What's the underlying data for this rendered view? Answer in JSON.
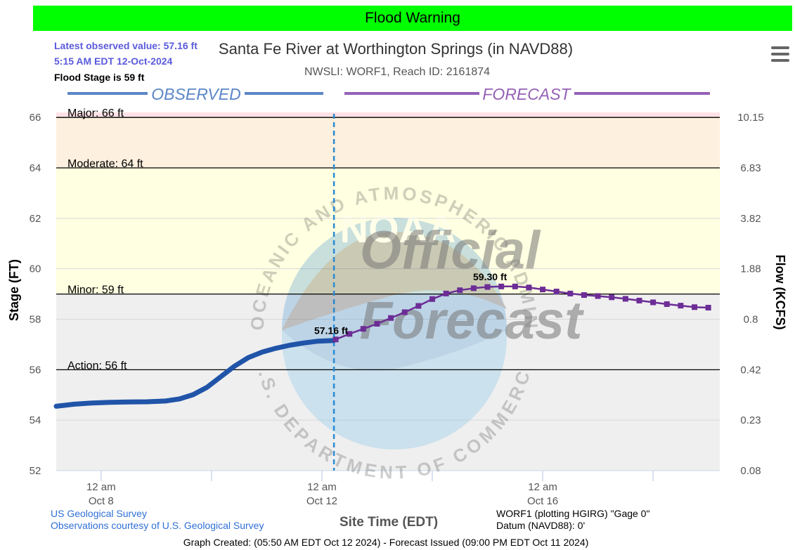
{
  "banner": "Flood Warning",
  "latest": {
    "line1": "Latest observed value: 57.16 ft",
    "line2": "5:15 AM EDT 12-Oct-2024",
    "line3": "Flood Stage is 59 ft"
  },
  "chart_data": {
    "type": "line",
    "title": "Santa Fe River at Worthington Springs (in NAVD88)",
    "subtitle": "NWSLI: WORF1, Reach ID: 2161874",
    "ylabel": "Stage (FT)",
    "y2label": "Flow (KCFS)",
    "xlabel": "Site Time (EDT)",
    "ylim": [
      52,
      66.2
    ],
    "y_ticks": [
      52,
      54,
      56,
      58,
      60,
      62,
      64,
      66
    ],
    "y2_tick_labels": [
      "0.08",
      "0.23",
      "0.42",
      "0.8",
      "1.88",
      "3.82",
      "6.83",
      "10.15"
    ],
    "x_ticks": [
      {
        "hour": 0,
        "line1": "12 am",
        "line2": "Oct 8"
      },
      {
        "hour": 96,
        "line1": "12 am",
        "line2": "Oct 12"
      },
      {
        "hour": 192,
        "line1": "12 am",
        "line2": "Oct 16"
      }
    ],
    "x_minor_ticks": [
      48,
      144,
      240
    ],
    "xlim": [
      -19.5,
      269
    ],
    "grid": true,
    "segment_labels": {
      "observed": "OBSERVED",
      "forecast": "FORECAST"
    },
    "current_time_hour": 5.25,
    "flood_categories": [
      {
        "label": "Major: 66 ft",
        "stage": 66,
        "color": "#ffe2e6"
      },
      {
        "label": "Moderate: 64 ft",
        "stage": 64,
        "color": "#fdf0de"
      },
      {
        "label": "Minor: 59 ft",
        "stage": 59,
        "color": "#ffffe1"
      },
      {
        "label": "Action: 56 ft",
        "stage": 56,
        "color": "#efefef"
      }
    ],
    "series": [
      {
        "name": "Observed",
        "color": "#2054a8",
        "x": [
          -19.5,
          -12,
          -4,
          4,
          12,
          20,
          28,
          34,
          40,
          46,
          52,
          58,
          64,
          70,
          76,
          82,
          88,
          94,
          101.25
        ],
        "y": [
          54.55,
          54.63,
          54.68,
          54.71,
          54.72,
          54.73,
          54.76,
          54.84,
          55.01,
          55.3,
          55.72,
          56.14,
          56.48,
          56.7,
          56.85,
          56.97,
          57.06,
          57.13,
          57.16
        ]
      },
      {
        "name": "Forecast",
        "color": "#6c2d96",
        "x": [
          102,
          108,
          114,
          120,
          126,
          132,
          138,
          144,
          150,
          156,
          162,
          168,
          174,
          180,
          186,
          192,
          198,
          204,
          210,
          216,
          222,
          228,
          234,
          240,
          246,
          252,
          258,
          264
        ],
        "y": [
          57.2,
          57.42,
          57.62,
          57.82,
          58.05,
          58.28,
          58.53,
          58.8,
          59.02,
          59.15,
          59.23,
          59.28,
          59.3,
          59.3,
          59.26,
          59.18,
          59.1,
          59.02,
          58.96,
          58.92,
          58.87,
          58.81,
          58.74,
          58.67,
          58.6,
          58.54,
          58.48,
          58.46
        ]
      }
    ],
    "annotations": [
      {
        "text": "57.16 ft",
        "x": 101.25,
        "y": 57.16
      },
      {
        "text": "59.30 ft",
        "x": 174,
        "y": 59.3
      }
    ]
  },
  "footer": {
    "source1": "US Geological Survey",
    "source2": "Observations courtesy of U.S. Geological Survey",
    "gauge1": "WORF1 (plotting HGIRG) \"Gage 0\"",
    "gauge2": "Datum (NAVD88): 0'",
    "created": "Graph Created: (05:50 AM EDT Oct 12 2024) - Forecast Issued (09:00 PM EDT Oct 11 2024)"
  },
  "watermark": {
    "ring": "NATIONAL OCEANIC AND ATMOSPHERIC ADMINISTRATION",
    "ring_bottom": "U.S. DEPARTMENT OF COMMERCE",
    "logo": "NOAA",
    "line1": "Official",
    "line2": "Forecast"
  },
  "icons": {
    "menu": "hamburger-menu-icon"
  }
}
